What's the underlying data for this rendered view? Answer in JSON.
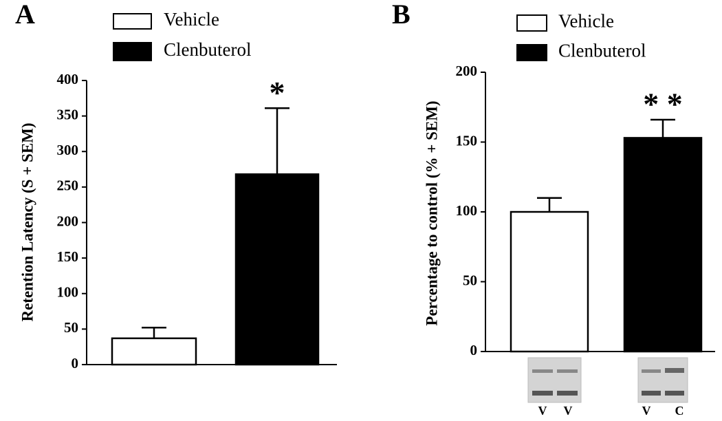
{
  "chart_data": [
    {
      "type": "bar",
      "panel": "A",
      "ylabel": "Retention Latency (S + SEM)",
      "ylim": [
        0,
        400
      ],
      "yticks": [
        0,
        50,
        100,
        150,
        200,
        250,
        300,
        350,
        400
      ],
      "series": [
        {
          "name": "Vehicle",
          "color": "#ffffff",
          "values": [
            37
          ],
          "errors": [
            15
          ]
        },
        {
          "name": "Clenbuterol",
          "color": "#000000",
          "values": [
            268
          ],
          "errors": [
            93
          ]
        }
      ],
      "annotation": "*"
    },
    {
      "type": "bar",
      "panel": "B",
      "ylabel": "Percentage to control (% + SEM)",
      "ylim": [
        0,
        200
      ],
      "yticks": [
        0,
        50,
        100,
        150,
        200
      ],
      "series": [
        {
          "name": "Vehicle",
          "color": "#ffffff",
          "values": [
            100
          ],
          "errors": [
            10
          ]
        },
        {
          "name": "Clenbuterol",
          "color": "#000000",
          "values": [
            153
          ],
          "errors": [
            13
          ]
        }
      ],
      "annotation": "* *",
      "blot_labels": [
        [
          "V",
          "V"
        ],
        [
          "V",
          "C"
        ]
      ]
    }
  ]
}
